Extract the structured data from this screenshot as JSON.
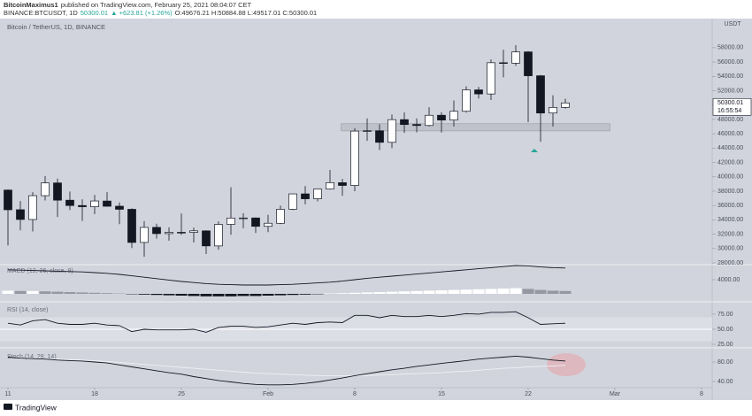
{
  "header": {
    "author": "BitcoinMaximus1",
    "published": "published on TradingView.com, February 25, 2021 08:04:07 CET",
    "symbol": "BINANCE:BTCUSDT, 1D",
    "price": 50300.01,
    "change": "▲ +623.81 (+1.26%)",
    "ohlc": "O:49676.21 H:50884.88 L:49517.01 C:50300.01"
  },
  "footer": {
    "brand": "TradingView"
  },
  "chart_data": [
    {
      "type": "candlestick",
      "title": "Bitcoin / TetherUS, 1D, BINANCE",
      "y_unit": "USDT",
      "open": [
        38150,
        35410,
        34049,
        37371,
        39145,
        36737,
        35994,
        35824,
        36622,
        35901,
        35468,
        30851,
        32950,
        32078,
        32259,
        32251,
        32464,
        30362,
        33368,
        34246,
        34262,
        33092,
        33517,
        35472,
        37620,
        36936,
        38289,
        39181,
        38795,
        46374,
        46420,
        44807,
        47968,
        47298,
        47156,
        48580,
        47911,
        49133,
        52117,
        51550,
        55906,
        55841,
        57412,
        54087,
        48891,
        49676
      ],
      "high": [
        38264,
        36628,
        37850,
        40100,
        39747,
        37950,
        36852,
        37469,
        37850,
        36415,
        35600,
        33826,
        33456,
        32944,
        34875,
        32921,
        32557,
        33783,
        38531,
        34933,
        34342,
        34717,
        35984,
        37662,
        38708,
        38310,
        40955,
        39700,
        46794,
        48142,
        47310,
        48678,
        48985,
        48150,
        49707,
        49010,
        50642,
        52618,
        52530,
        56368,
        57700,
        58352,
        57508,
        54183,
        51374,
        50884
      ],
      "low": [
        30420,
        32531,
        32380,
        36701,
        34408,
        35357,
        33850,
        34800,
        35844,
        33400,
        30071,
        28850,
        31390,
        31106,
        31910,
        30837,
        29241,
        29842,
        31915,
        32825,
        32171,
        32296,
        33418,
        35362,
        36161,
        36570,
        38215,
        37351,
        37988,
        45020,
        43727,
        43994,
        46125,
        46202,
        47014,
        46174,
        47003,
        48947,
        50901,
        50710,
        53863,
        55477,
        47622,
        44892,
        47003,
        49517
      ],
      "close": [
        35404,
        34051,
        37371,
        39144,
        36742,
        35994,
        35828,
        36631,
        35891,
        35468,
        30850,
        32945,
        32078,
        32259,
        32254,
        32467,
        30366,
        33364,
        34252,
        34262,
        33092,
        33526,
        35466,
        37618,
        36936,
        38290,
        39186,
        38795,
        46374,
        46420,
        44807,
        47969,
        47287,
        47153,
        48577,
        47911,
        49133,
        52119,
        51552,
        55906,
        55841,
        57408,
        54087,
        48891,
        49676,
        50300
      ],
      "color_up": "#ffffff",
      "color_down": "#131722",
      "xlim": [
        -0.643,
        56.857
      ],
      "xticks": [
        {
          "value": 0,
          "label": "11"
        },
        {
          "value": 7,
          "label": "18"
        },
        {
          "value": 14,
          "label": "25"
        },
        {
          "value": 21,
          "label": "Feb"
        },
        {
          "value": 28,
          "label": "8"
        },
        {
          "value": 35,
          "label": "15"
        },
        {
          "value": 42,
          "label": "22"
        },
        {
          "value": 49,
          "label": "Mar"
        },
        {
          "value": 56,
          "label": "8"
        }
      ],
      "ylim": [
        27877,
        62057
      ],
      "yticks": [
        {
          "value": 28000,
          "label": "28000.00"
        },
        {
          "value": 30000,
          "label": "30000.00"
        },
        {
          "value": 32000,
          "label": "32000.00"
        },
        {
          "value": 34000,
          "label": "34000.00"
        },
        {
          "value": 36000,
          "label": "36000.00"
        },
        {
          "value": 38000,
          "label": "38000.00"
        },
        {
          "value": 40000,
          "label": "40000.00"
        },
        {
          "value": 42000,
          "label": "42000.00"
        },
        {
          "value": 44000,
          "label": "44000.00"
        },
        {
          "value": 46000,
          "label": "46000.00"
        },
        {
          "value": 48000,
          "label": "48000.00"
        },
        {
          "value": 50000,
          "label": "50000.00"
        },
        {
          "value": 52000,
          "label": "52000.00"
        },
        {
          "value": 54000,
          "label": "54000.00"
        },
        {
          "value": 56000,
          "label": "56000.00"
        },
        {
          "value": 58000,
          "label": "58000.00"
        }
      ],
      "last_price": 50300.01,
      "countdown": "16:55:54",
      "support_zone": {
        "x": [
          26.9,
          48.6
        ],
        "y": [
          46400,
          47400
        ]
      }
    },
    {
      "type": "macd",
      "title": "MACD (12, 26, close, 9)",
      "values": [
        6800,
        6700,
        6600,
        6500,
        6400,
        6300,
        6200,
        6000,
        5800,
        5500,
        5100,
        4700,
        4300,
        3900,
        3500,
        3200,
        2900,
        2700,
        2600,
        2500,
        2500,
        2500,
        2600,
        2700,
        2900,
        3100,
        3300,
        3600,
        4000,
        4400,
        4700,
        5000,
        5300,
        5600,
        5900,
        6200,
        6500,
        6800,
        7100,
        7400,
        7700,
        8000,
        7900,
        7600,
        7400,
        7300
      ],
      "histogram": [
        900,
        800,
        800,
        700,
        600,
        500,
        400,
        300,
        200,
        100,
        -100,
        -200,
        -300,
        -400,
        -500,
        -600,
        -700,
        -700,
        -700,
        -600,
        -600,
        -500,
        -400,
        -300,
        -200,
        -100,
        100,
        200,
        300,
        400,
        500,
        600,
        700,
        800,
        900,
        1000,
        1100,
        1200,
        1300,
        1400,
        1500,
        1600,
        1400,
        1100,
        900,
        800
      ],
      "color": "#131722",
      "ylim": [
        -2000,
        8000
      ],
      "yticks": [
        {
          "value": 4000,
          "label": "4000.00"
        }
      ]
    },
    {
      "type": "rsi",
      "title": "RSI (14, close)",
      "values": [
        60,
        57,
        64,
        66,
        60,
        58,
        58,
        60,
        57,
        56,
        46,
        50,
        49,
        49,
        49,
        50,
        45,
        53,
        55,
        55,
        53,
        54,
        57,
        60,
        58,
        61,
        62,
        61,
        73,
        73,
        69,
        73,
        71,
        71,
        73,
        71,
        73,
        76,
        75,
        78,
        78,
        79,
        69,
        58,
        59,
        60
      ],
      "color": "#131722",
      "band": [
        30,
        70
      ],
      "midline": 50,
      "ylim": [
        20.6,
        94
      ],
      "yticks": [
        {
          "value": 75,
          "label": "75.00"
        },
        {
          "value": 50,
          "label": "50.00"
        },
        {
          "value": 25,
          "label": "25.00"
        }
      ]
    },
    {
      "type": "stoch",
      "title": "Stoch (14, 28, 14)",
      "series": [
        {
          "color": "#131722",
          "values": [
            90,
            88,
            87,
            86,
            84,
            83,
            82,
            80,
            78,
            74,
            70,
            66,
            62,
            58,
            55,
            50,
            46,
            42,
            39,
            36,
            34,
            33,
            33,
            34,
            36,
            39,
            43,
            47,
            52,
            56,
            60,
            64,
            67,
            71,
            74,
            77,
            80,
            83,
            86,
            88,
            90,
            92,
            90,
            87,
            84,
            82
          ]
        },
        {
          "color": "#eef0f4",
          "values": [
            90,
            89,
            88,
            87,
            86,
            85,
            84,
            83,
            81,
            79,
            77,
            75,
            73,
            71,
            69,
            67,
            65,
            63,
            61,
            59,
            57,
            56,
            55,
            54,
            53,
            52,
            52,
            52,
            52,
            52,
            53,
            54,
            55,
            56,
            57,
            58,
            60,
            61,
            63,
            65,
            67,
            68,
            70,
            71,
            72,
            73
          ]
        }
      ],
      "ylim": [
        29,
        105.5
      ],
      "yticks": [
        {
          "value": 80,
          "label": "80.00"
        },
        {
          "value": 40,
          "label": "40.00"
        }
      ]
    }
  ]
}
